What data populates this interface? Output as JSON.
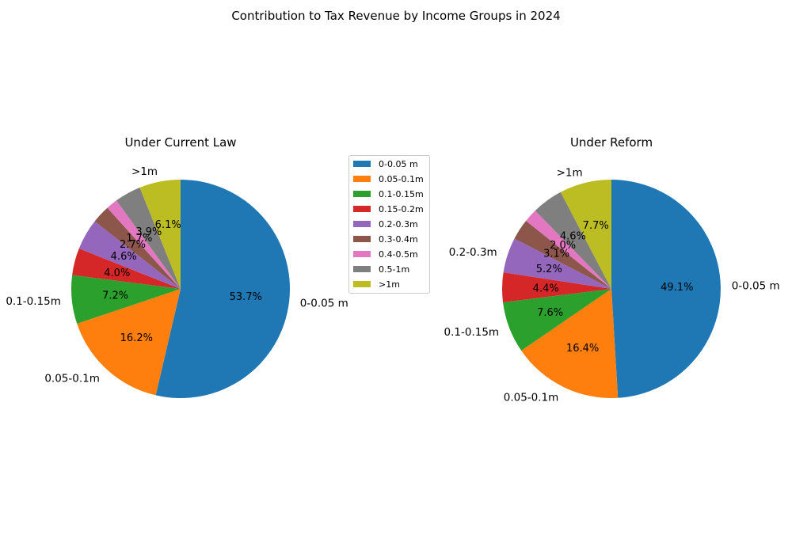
{
  "figure_title": "Contribution to Tax Revenue by Income Groups in 2024",
  "legend": {
    "entries": [
      "0-0.05 m",
      "0.05-0.1m",
      "0.1-0.15m",
      "0.15-0.2m",
      "0.2-0.3m",
      "0.3-0.4m",
      "0.4-0.5m",
      "0.5-1m",
      ">1m"
    ],
    "colors": [
      "#1f77b4",
      "#ff7f0e",
      "#2ca02c",
      "#d62728",
      "#9467bd",
      "#8c564b",
      "#e377c2",
      "#7f7f7f",
      "#bcbd22"
    ],
    "placement": "center"
  },
  "chart_data": [
    {
      "type": "pie",
      "title": "Under Current Law",
      "labels": [
        "0-0.05 m",
        "0.05-0.1m",
        "0.1-0.15m",
        "0.15-0.2m",
        "0.2-0.3m",
        "0.3-0.4m",
        "0.4-0.5m",
        "0.5-1m",
        ">1m"
      ],
      "values": [
        53.7,
        16.2,
        7.2,
        4.0,
        4.6,
        2.7,
        1.7,
        3.9,
        6.1
      ],
      "pct_labels": [
        "53.7%",
        "16.2%",
        "7.2%",
        "4.0%",
        "4.6%",
        "2.7%",
        "1.7%",
        "3.9%",
        "6.1%"
      ],
      "outer_labels": [
        "0-0.05 m",
        "0.05-0.1m",
        "0.1-0.15m",
        "",
        "",
        "",
        "",
        "",
        ">1m"
      ],
      "start_angle_deg": 90,
      "direction": "clockwise"
    },
    {
      "type": "pie",
      "title": "Under Reform",
      "labels": [
        "0-0.05 m",
        "0.05-0.1m",
        "0.1-0.15m",
        "0.15-0.2m",
        "0.2-0.3m",
        "0.3-0.4m",
        "0.4-0.5m",
        "0.5-1m",
        ">1m"
      ],
      "values": [
        49.1,
        16.4,
        7.6,
        4.4,
        5.2,
        3.1,
        2.0,
        4.6,
        7.7
      ],
      "pct_labels": [
        "49.1%",
        "16.4%",
        "7.6%",
        "4.4%",
        "5.2%",
        "3.1%",
        "2.0%",
        "4.6%",
        "7.7%"
      ],
      "outer_labels": [
        "0-0.05 m",
        "0.05-0.1m",
        "0.1-0.15m",
        "",
        "0.2-0.3m",
        "",
        "",
        "",
        ">1m"
      ],
      "start_angle_deg": 90,
      "direction": "clockwise"
    }
  ]
}
